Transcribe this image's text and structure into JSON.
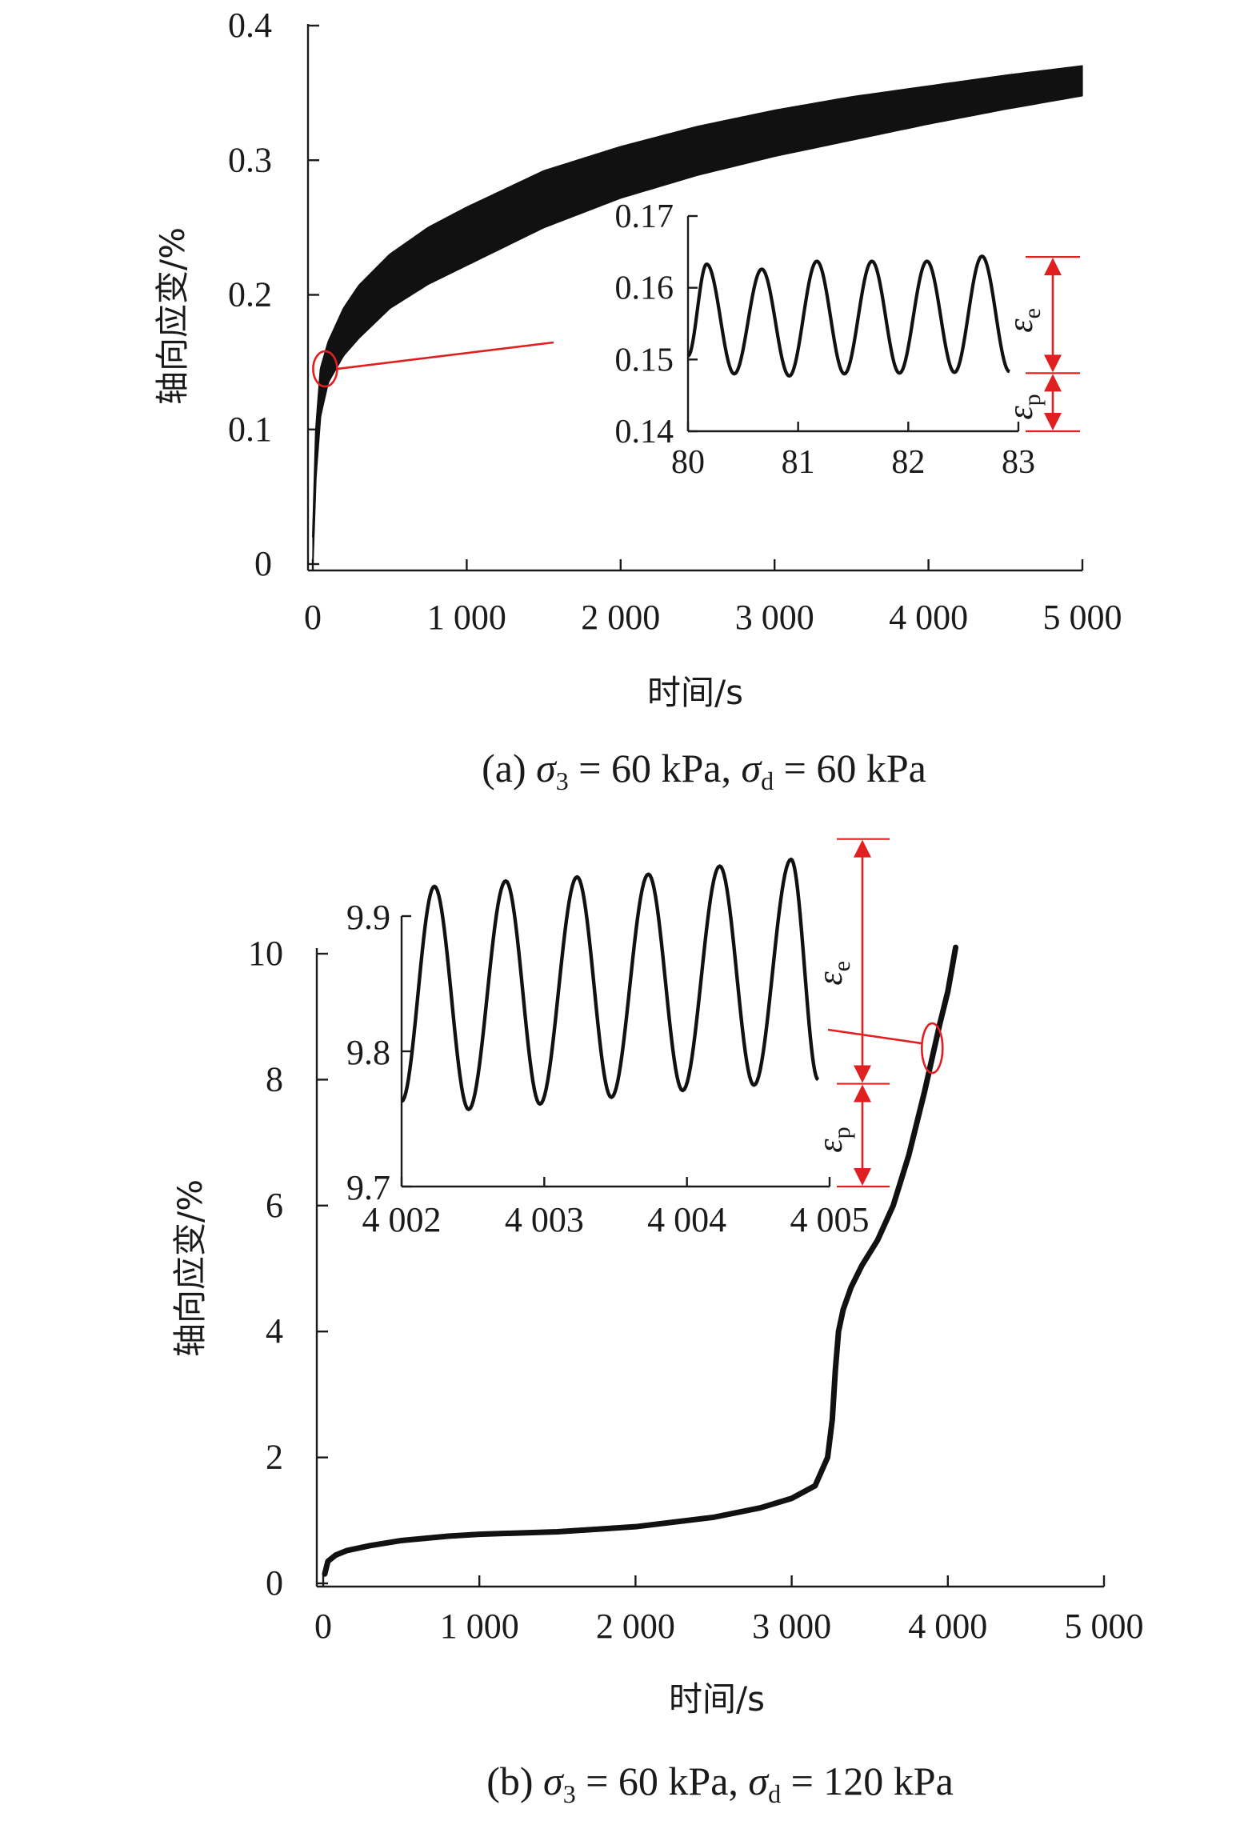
{
  "chart_data": [
    {
      "type": "line",
      "panel": "a",
      "caption": {
        "prefix": "(a) ",
        "sigma3_label": "σ",
        "sigma3_sub": "3",
        "sigma3_value": " = 60 kPa, ",
        "sigmad_label": "σ",
        "sigmad_sub": "d",
        "sigmad_value": " = 60 kPa"
      },
      "xlabel": "时间/s",
      "ylabel": "轴向应变/%",
      "xlim": [
        0,
        5000
      ],
      "ylim": [
        0,
        0.4
      ],
      "xticks": [
        0,
        1000,
        2000,
        3000,
        4000,
        5000
      ],
      "xtick_labels": [
        "0",
        "1 000",
        "2 000",
        "3 000",
        "4 000",
        "5 000"
      ],
      "yticks": [
        0,
        0.1,
        0.2,
        0.3,
        0.4
      ],
      "ytick_labels": [
        "0",
        "0.1",
        "0.2",
        "0.3",
        "0.4"
      ],
      "series": [
        {
          "name": "upper envelope",
          "x": [
            0,
            20,
            50,
            100,
            200,
            300,
            500,
            750,
            1000,
            1500,
            2000,
            2500,
            3000,
            3500,
            4000,
            4500,
            5000
          ],
          "values": [
            0.02,
            0.1,
            0.145,
            0.165,
            0.19,
            0.207,
            0.23,
            0.25,
            0.265,
            0.292,
            0.31,
            0.325,
            0.337,
            0.347,
            0.355,
            0.363,
            0.37
          ]
        },
        {
          "name": "lower envelope",
          "x": [
            0,
            20,
            50,
            100,
            200,
            300,
            500,
            750,
            1000,
            1500,
            2000,
            2500,
            3000,
            3500,
            4000,
            4500,
            5000
          ],
          "values": [
            0,
            0.065,
            0.11,
            0.135,
            0.155,
            0.168,
            0.19,
            0.208,
            0.222,
            0.25,
            0.272,
            0.289,
            0.303,
            0.315,
            0.327,
            0.338,
            0.348
          ]
        }
      ],
      "inset": {
        "xlim": [
          80,
          83
        ],
        "ylim": [
          0.14,
          0.17
        ],
        "xticks": [
          80,
          81,
          82,
          83
        ],
        "xtick_labels": [
          "80",
          "81",
          "82",
          "83"
        ],
        "yticks": [
          0.14,
          0.15,
          0.16,
          0.17
        ],
        "ytick_labels": [
          "0.14",
          "0.15",
          "0.16",
          "0.17"
        ],
        "series": [
          {
            "name": "cyclic strain",
            "x": [
              80,
              80.17,
              80.42,
              80.67,
              80.92,
              81.17,
              81.42,
              81.67,
              81.92,
              82.17,
              82.42,
              82.67,
              82.92
            ],
            "values": [
              0.1505,
              0.1633,
              0.148,
              0.1626,
              0.1477,
              0.1637,
              0.148,
              0.1637,
              0.1481,
              0.1637,
              0.1482,
              0.1644,
              0.1483
            ]
          }
        ],
        "annotations": {
          "elastic_label": "ε",
          "elastic_sub": "e",
          "plastic_label": "ε",
          "plastic_sub": "p",
          "elastic_range": [
            0.1481,
            0.1643
          ],
          "plastic_range": [
            0.14,
            0.1481
          ]
        },
        "zoom_marker_at": {
          "x": 80,
          "y": 0.145
        }
      }
    },
    {
      "type": "line",
      "panel": "b",
      "caption": {
        "prefix": "(b) ",
        "sigma3_label": "σ",
        "sigma3_sub": "3",
        "sigma3_value": " = 60 kPa, ",
        "sigmad_label": "σ",
        "sigmad_sub": "d",
        "sigmad_value": " = 120 kPa"
      },
      "xlabel": "时间/s",
      "ylabel": "轴向应变/%",
      "xlim": [
        0,
        5000
      ],
      "ylim": [
        0,
        10
      ],
      "xticks": [
        0,
        1000,
        2000,
        3000,
        4000,
        5000
      ],
      "xtick_labels": [
        "0",
        "1 000",
        "2 000",
        "3 000",
        "4 000",
        "5 000"
      ],
      "yticks": [
        0,
        2,
        4,
        6,
        8,
        10
      ],
      "ytick_labels": [
        "0",
        "2",
        "4",
        "6",
        "8",
        "10"
      ],
      "series": [
        {
          "name": "axial strain",
          "x": [
            10,
            30,
            80,
            150,
            300,
            500,
            800,
            1000,
            1500,
            2000,
            2500,
            2800,
            3000,
            3150,
            3230,
            3260,
            3280,
            3300,
            3330,
            3380,
            3450,
            3550,
            3650,
            3750,
            3850,
            3950,
            4000,
            4050
          ],
          "values": [
            0.15,
            0.35,
            0.45,
            0.52,
            0.6,
            0.68,
            0.75,
            0.78,
            0.82,
            0.9,
            1.05,
            1.2,
            1.35,
            1.55,
            2.0,
            2.6,
            3.4,
            4.0,
            4.35,
            4.7,
            5.05,
            5.45,
            6.0,
            6.8,
            7.8,
            8.9,
            9.4,
            10.1
          ]
        }
      ],
      "inset": {
        "xlim": [
          4002,
          4005
        ],
        "ylim": [
          9.7,
          9.9
        ],
        "xticks": [
          4002,
          4003,
          4004,
          4005
        ],
        "xtick_labels": [
          "4 002",
          "4 003",
          "4 004",
          "4 005"
        ],
        "yticks": [
          9.7,
          9.8,
          9.9
        ],
        "ytick_labels": [
          "9.7",
          "9.8",
          "9.9"
        ],
        "series": [
          {
            "name": "cyclic strain",
            "x": [
              4002,
              4002.23,
              4002.47,
              4002.73,
              4002.97,
              4003.23,
              4003.47,
              4003.73,
              4003.97,
              4004.23,
              4004.47,
              4004.73,
              4004.92
            ],
            "values": [
              9.763,
              9.922,
              9.757,
              9.926,
              9.761,
              9.929,
              9.766,
              9.931,
              9.771,
              9.937,
              9.775,
              9.942,
              9.779
            ]
          }
        ],
        "annotations": {
          "elastic_label": "ε",
          "elastic_sub": "e",
          "plastic_label": "ε",
          "plastic_sub": "p",
          "elastic_range": [
            9.776,
            9.957
          ],
          "plastic_range": [
            9.7,
            9.776
          ]
        },
        "zoom_marker_at": {
          "x": 3900,
          "y": 8.5
        }
      }
    }
  ]
}
